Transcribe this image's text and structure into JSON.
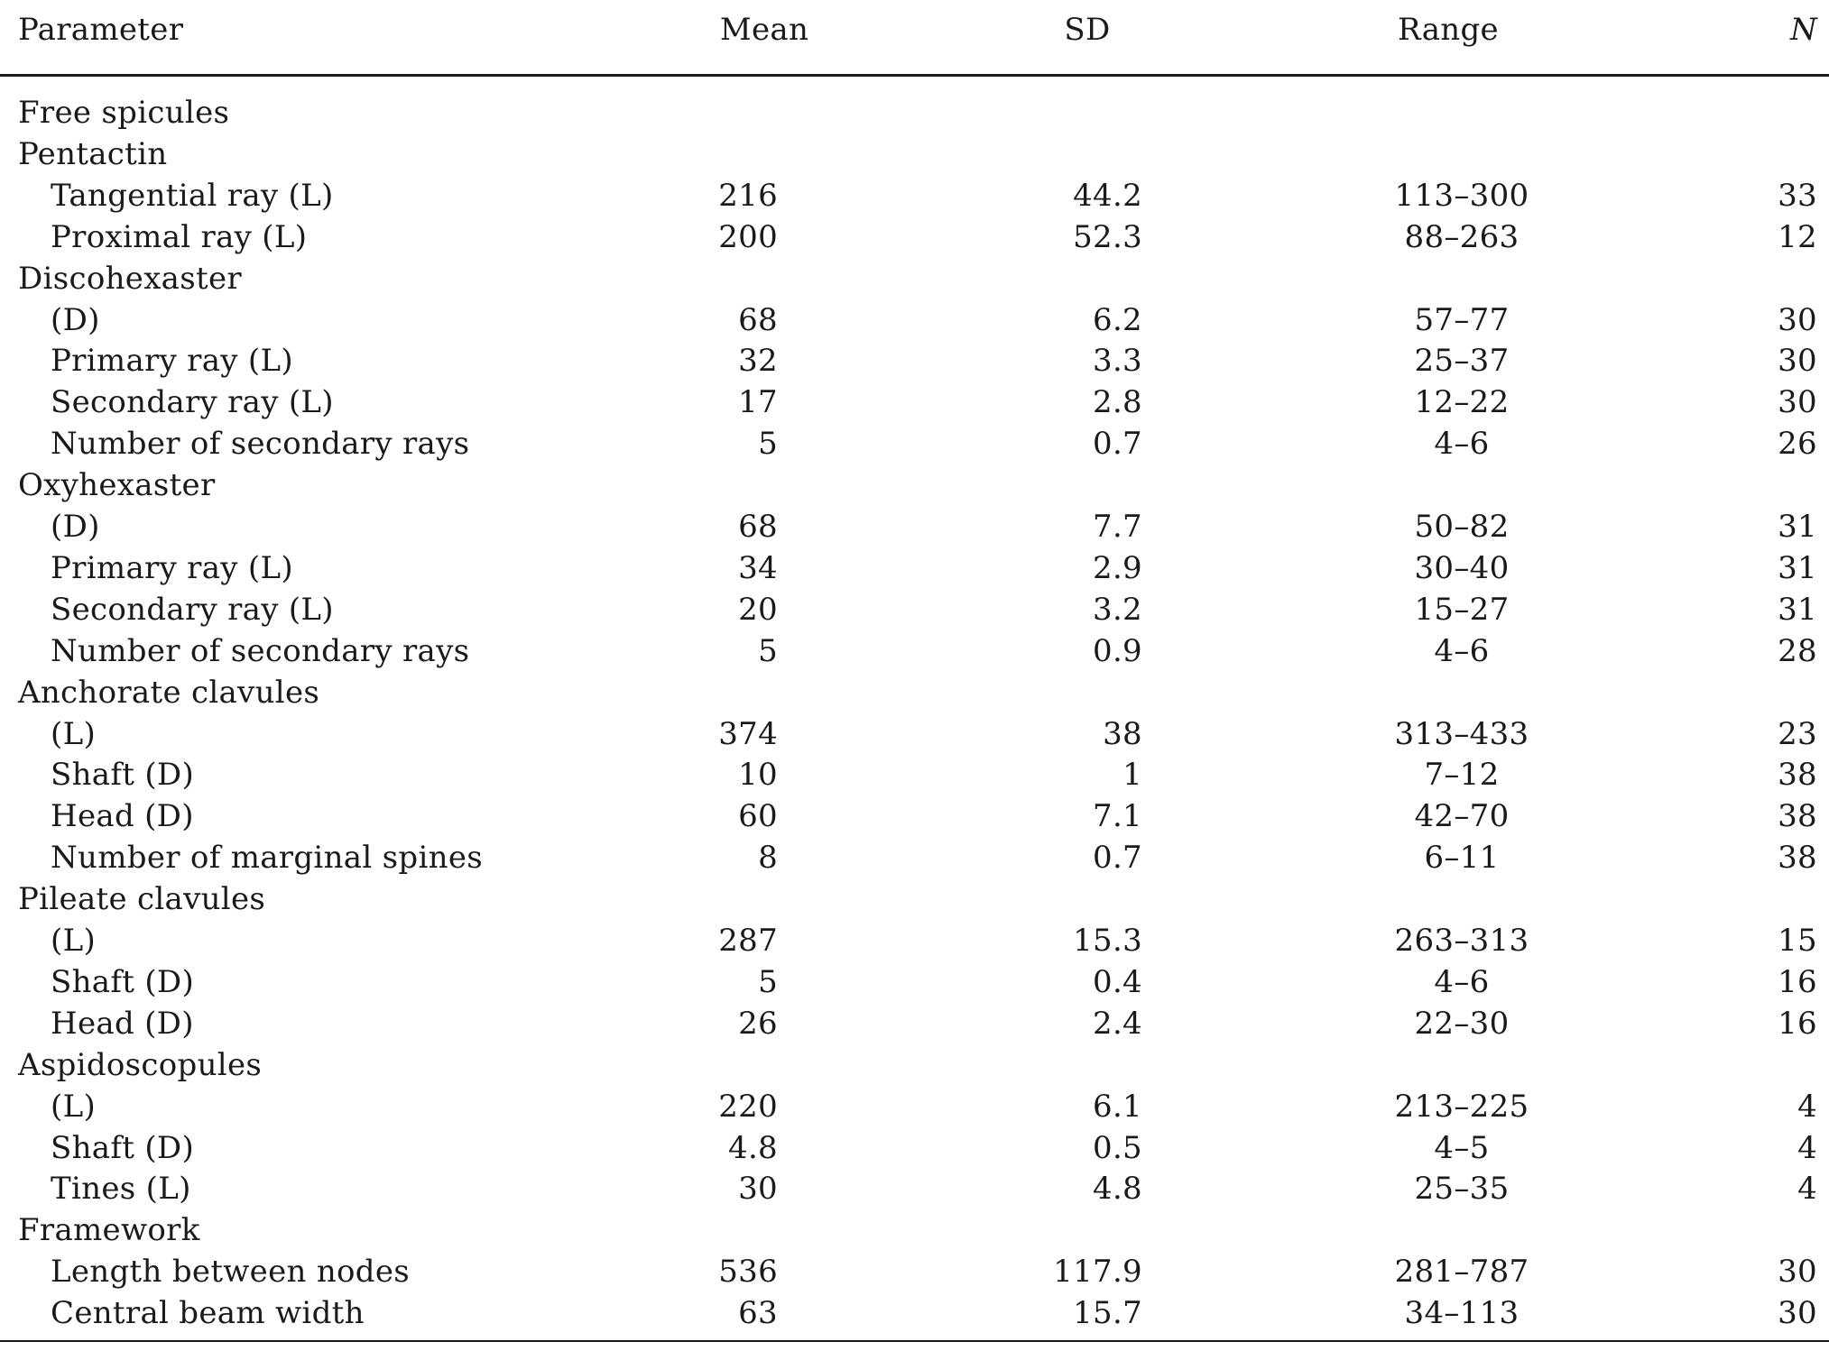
{
  "table": {
    "headers": {
      "parameter": "Parameter",
      "mean": "Mean",
      "sd": "SD",
      "range": "Range",
      "n": "N"
    },
    "rows": [
      {
        "label": "Free spicules",
        "indent": 0,
        "mean": "",
        "sd": "",
        "range": "",
        "n": ""
      },
      {
        "label": "Pentactin",
        "indent": 0,
        "mean": "",
        "sd": "",
        "range": "",
        "n": ""
      },
      {
        "label": "Tangential ray (L)",
        "indent": 1,
        "mean": "216",
        "sd": "44.2",
        "range": "113–300",
        "n": "33"
      },
      {
        "label": "Proximal ray (L)",
        "indent": 1,
        "mean": "200",
        "sd": "52.3",
        "range": "88–263",
        "n": "12"
      },
      {
        "label": "Discohexaster",
        "indent": 0,
        "mean": "",
        "sd": "",
        "range": "",
        "n": ""
      },
      {
        "label": "(D)",
        "indent": 1,
        "mean": "68",
        "sd": "6.2",
        "range": "57–77",
        "n": "30"
      },
      {
        "label": "Primary ray (L)",
        "indent": 1,
        "mean": "32",
        "sd": "3.3",
        "range": "25–37",
        "n": "30"
      },
      {
        "label": "Secondary ray (L)",
        "indent": 1,
        "mean": "17",
        "sd": "2.8",
        "range": "12–22",
        "n": "30"
      },
      {
        "label": "Number of secondary rays",
        "indent": 1,
        "mean": "5",
        "sd": "0.7",
        "range": "4–6",
        "n": "26"
      },
      {
        "label": "Oxyhexaster",
        "indent": 0,
        "mean": "",
        "sd": "",
        "range": "",
        "n": ""
      },
      {
        "label": "(D)",
        "indent": 1,
        "mean": "68",
        "sd": "7.7",
        "range": "50–82",
        "n": "31"
      },
      {
        "label": "Primary ray (L)",
        "indent": 1,
        "mean": "34",
        "sd": "2.9",
        "range": "30–40",
        "n": "31"
      },
      {
        "label": "Secondary ray (L)",
        "indent": 1,
        "mean": "20",
        "sd": "3.2",
        "range": "15–27",
        "n": "31"
      },
      {
        "label": "Number of secondary rays",
        "indent": 1,
        "mean": "5",
        "sd": "0.9",
        "range": "4–6",
        "n": "28"
      },
      {
        "label": "Anchorate clavules",
        "indent": 0,
        "mean": "",
        "sd": "",
        "range": "",
        "n": ""
      },
      {
        "label": "(L)",
        "indent": 1,
        "mean": "374",
        "sd": "38",
        "range": "313–433",
        "n": "23"
      },
      {
        "label": "Shaft (D)",
        "indent": 1,
        "mean": "10",
        "sd": "1",
        "range": "7–12",
        "n": "38"
      },
      {
        "label": "Head (D)",
        "indent": 1,
        "mean": "60",
        "sd": "7.1",
        "range": "42–70",
        "n": "38"
      },
      {
        "label": "Number of marginal spines",
        "indent": 1,
        "mean": "8",
        "sd": "0.7",
        "range": "6–11",
        "n": "38"
      },
      {
        "label": "Pileate clavules",
        "indent": 0,
        "mean": "",
        "sd": "",
        "range": "",
        "n": ""
      },
      {
        "label": "(L)",
        "indent": 1,
        "mean": "287",
        "sd": "15.3",
        "range": "263–313",
        "n": "15"
      },
      {
        "label": "Shaft (D)",
        "indent": 1,
        "mean": "5",
        "sd": "0.4",
        "range": "4–6",
        "n": "16"
      },
      {
        "label": "Head (D)",
        "indent": 1,
        "mean": "26",
        "sd": "2.4",
        "range": "22–30",
        "n": "16"
      },
      {
        "label": "Aspidoscopules",
        "indent": 0,
        "mean": "",
        "sd": "",
        "range": "",
        "n": ""
      },
      {
        "label": "(L)",
        "indent": 1,
        "mean": "220",
        "sd": "6.1",
        "range": "213–225",
        "n": "4"
      },
      {
        "label": "Shaft (D)",
        "indent": 1,
        "mean": "4.8",
        "sd": "0.5",
        "range": "4–5",
        "n": "4"
      },
      {
        "label": "Tines (L)",
        "indent": 1,
        "mean": "30",
        "sd": "4.8",
        "range": "25–35",
        "n": "4"
      },
      {
        "label": "Framework",
        "indent": 0,
        "mean": "",
        "sd": "",
        "range": "",
        "n": ""
      },
      {
        "label": "Length between nodes",
        "indent": 1,
        "mean": "536",
        "sd": "117.9",
        "range": "281–787",
        "n": "30"
      },
      {
        "label": "Central beam width",
        "indent": 1,
        "mean": "63",
        "sd": "15.7",
        "range": "34–113",
        "n": "30"
      }
    ]
  }
}
